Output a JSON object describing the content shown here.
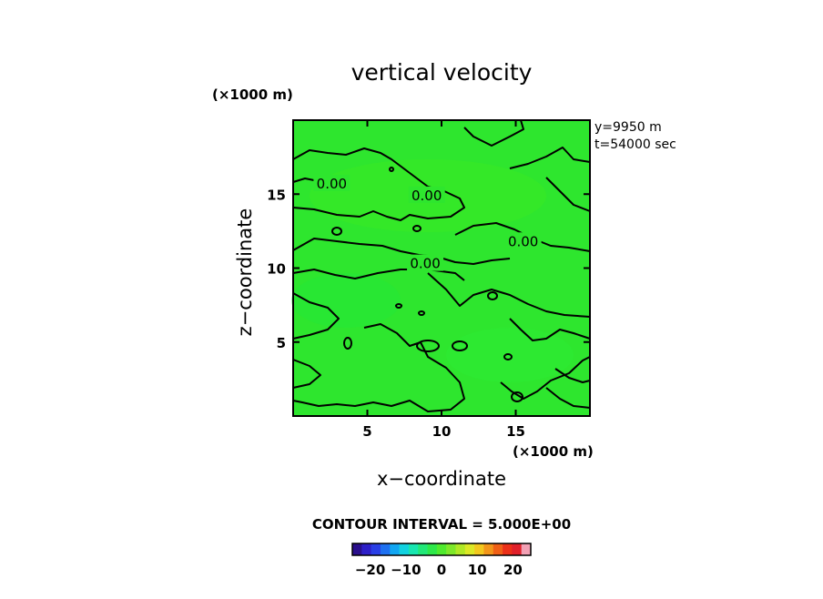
{
  "chart_data": {
    "type": "heatmap",
    "title": "vertical velocity",
    "xlabel": "x−coordinate",
    "ylabel": "z−coordinate",
    "x_unit": "(×1000 m)",
    "y_unit": "(×1000 m)",
    "xlim": [
      0,
      20
    ],
    "ylim": [
      0,
      20
    ],
    "x_ticks": [
      5,
      10,
      15
    ],
    "y_ticks": [
      5,
      10,
      15
    ],
    "annotations": [
      "y=9950 m",
      "t=54000 sec"
    ],
    "contour_interval_label": "CONTOUR INTERVAL = 5.000E+00",
    "contour_labels": [
      {
        "text": "0.00",
        "x": 2.6,
        "y": 15.7
      },
      {
        "text": "0.00",
        "x": 9.0,
        "y": 14.9
      },
      {
        "text": "0.00",
        "x": 15.5,
        "y": 11.8
      },
      {
        "text": "0.00",
        "x": 8.9,
        "y": 10.3
      }
    ],
    "field_color": "#2ee62e",
    "colorbar": {
      "ticks": [
        -20,
        -10,
        0,
        10,
        20
      ],
      "tick_labels": [
        "−20",
        "−10",
        "0",
        "10",
        "20"
      ],
      "range": [
        -25,
        25
      ],
      "colors": [
        "#2a0f8c",
        "#2d1fc8",
        "#2a3fe6",
        "#1e70f0",
        "#12a6f2",
        "#12d2e0",
        "#18e6b0",
        "#22e878",
        "#2ee84a",
        "#50ea2e",
        "#7ee82a",
        "#b0e826",
        "#dce826",
        "#f2c81e",
        "#f2961a",
        "#f06016",
        "#ec3018",
        "#e0202a",
        "#f2a0b4"
      ]
    }
  }
}
